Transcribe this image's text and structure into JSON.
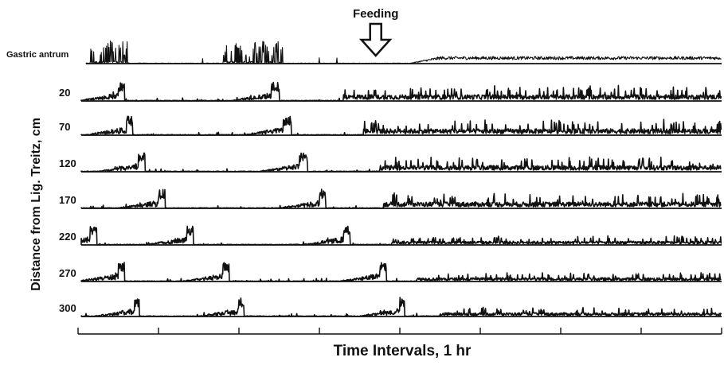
{
  "chart_data": {
    "type": "line",
    "title": "",
    "xlabel": "Time  Intervals, 1 hr",
    "ylabel": "Distance from Lig. Treitz, cm",
    "x_unit_hours": 1,
    "x_range_hours": [
      0,
      8
    ],
    "x_ticks_hours": [
      0,
      1,
      2,
      3,
      4,
      5,
      6,
      7,
      8
    ],
    "annotation": {
      "label": "Feeding",
      "time_hours": 3.7,
      "symbol": "down-arrow"
    },
    "series": [
      {
        "name": "Gastric antrum",
        "bursts_hours": [
          [
            0.15,
            0.62
          ],
          [
            1.8,
            2.55
          ]
        ],
        "fed_start_hours": 4.1,
        "pattern": "antrum"
      },
      {
        "name": "20",
        "bursts_hours": [
          [
            0.5,
            0.58
          ],
          [
            2.4,
            2.5
          ]
        ],
        "fed_start_hours": 3.3
      },
      {
        "name": "70",
        "bursts_hours": [
          [
            0.6,
            0.68
          ],
          [
            2.55,
            2.65
          ]
        ],
        "fed_start_hours": 3.55
      },
      {
        "name": "120",
        "bursts_hours": [
          [
            0.75,
            0.83
          ],
          [
            2.75,
            2.85
          ]
        ],
        "fed_start_hours": 3.75
      },
      {
        "name": "170",
        "bursts_hours": [
          [
            1.0,
            1.08
          ],
          [
            3.0,
            3.08
          ]
        ],
        "fed_start_hours": 3.8
      },
      {
        "name": "220",
        "bursts_hours": [
          [
            0.15,
            0.23
          ],
          [
            1.35,
            1.43
          ],
          [
            3.3,
            3.38
          ]
        ],
        "fed_start_hours": 3.9
      },
      {
        "name": "270",
        "bursts_hours": [
          [
            0.5,
            0.58
          ],
          [
            1.8,
            1.88
          ],
          [
            3.75,
            3.83
          ]
        ],
        "fed_start_hours": 4.2
      },
      {
        "name": "300",
        "bursts_hours": [
          [
            0.7,
            0.76
          ],
          [
            2.0,
            2.06
          ],
          [
            4.0,
            4.06
          ]
        ],
        "fed_start_hours": 4.5
      }
    ]
  }
}
